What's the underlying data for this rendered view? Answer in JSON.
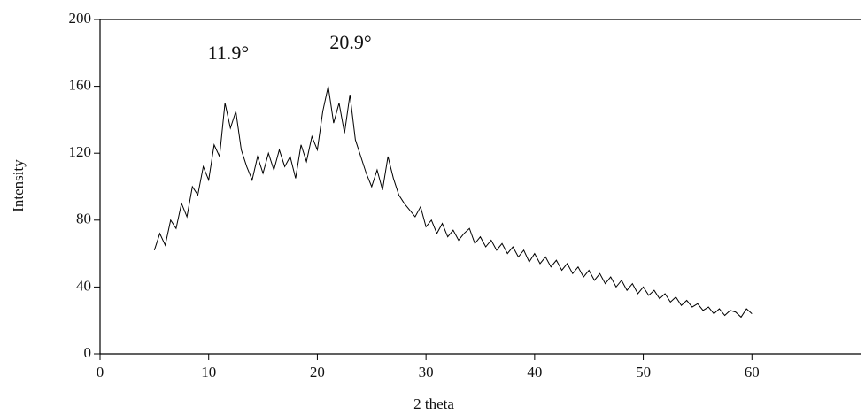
{
  "chart_data": {
    "type": "line",
    "ylabel": "Intensity",
    "xlabel": "2 theta",
    "annotations": [
      "11.9°",
      "20.9°"
    ],
    "x": [
      5,
      5.5,
      6,
      6.5,
      7,
      7.5,
      8,
      8.5,
      9,
      9.5,
      10,
      10.5,
      11,
      11.5,
      12,
      12.5,
      13,
      13.5,
      14,
      14.5,
      15,
      15.5,
      16,
      16.5,
      17,
      17.5,
      18,
      18.5,
      19,
      19.5,
      20,
      20.5,
      21,
      21.5,
      22,
      22.5,
      23,
      23.5,
      24,
      24.5,
      25,
      25.5,
      26,
      26.5,
      27,
      27.5,
      28,
      28.5,
      29,
      29.5,
      30,
      30.5,
      31,
      31.5,
      32,
      32.5,
      33,
      33.5,
      34,
      34.5,
      35,
      35.5,
      36,
      36.5,
      37,
      37.5,
      38,
      38.5,
      39,
      39.5,
      40,
      40.5,
      41,
      41.5,
      42,
      42.5,
      43,
      43.5,
      44,
      44.5,
      45,
      45.5,
      46,
      46.5,
      47,
      47.5,
      48,
      48.5,
      49,
      49.5,
      50,
      50.5,
      51,
      51.5,
      52,
      52.5,
      53,
      53.5,
      54,
      54.5,
      55,
      55.5,
      56,
      56.5,
      57,
      57.5,
      58,
      58.5,
      59,
      59.5,
      60
    ],
    "series": [
      {
        "color": "#000000",
        "values": [
          62,
          72,
          65,
          80,
          75,
          90,
          82,
          100,
          95,
          112,
          104,
          125,
          118,
          150,
          135,
          145,
          122,
          112,
          104,
          118,
          108,
          120,
          110,
          122,
          112,
          118,
          105,
          125,
          115,
          130,
          122,
          145,
          160,
          138,
          150,
          132,
          155,
          128,
          118,
          108,
          100,
          110,
          98,
          118,
          105,
          95,
          90,
          86,
          82,
          88,
          76,
          80,
          72,
          78,
          70,
          74,
          68,
          72,
          75,
          66,
          70,
          64,
          68,
          62,
          66,
          60,
          64,
          58,
          62,
          55,
          60,
          54,
          58,
          52,
          56,
          50,
          54,
          48,
          52,
          46,
          50,
          44,
          48,
          42,
          46,
          40,
          44,
          38,
          42,
          36,
          40,
          35,
          38,
          33,
          36,
          31,
          34,
          29,
          32,
          28,
          30,
          26,
          28,
          24,
          27,
          23,
          26,
          25,
          22,
          27,
          24
        ]
      }
    ],
    "xlim": [
      0,
      70
    ],
    "xticks": [
      0,
      10,
      20,
      30,
      40,
      50,
      60
    ],
    "ylim": [
      0,
      200
    ],
    "yticks": [
      0,
      40,
      80,
      120,
      160,
      200
    ]
  }
}
